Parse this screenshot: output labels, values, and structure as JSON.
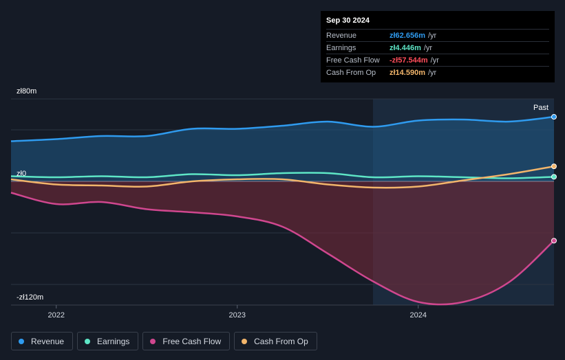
{
  "tooltip": {
    "date": "Sep 30 2024",
    "rows": [
      {
        "label": "Revenue",
        "value": "zł62.656m",
        "unit": "/yr",
        "color": "#2f9bef"
      },
      {
        "label": "Earnings",
        "value": "zł4.446m",
        "unit": "/yr",
        "color": "#5ee6c6"
      },
      {
        "label": "Free Cash Flow",
        "value": "-zł57.544m",
        "unit": "/yr",
        "color": "#ff4d5b"
      },
      {
        "label": "Cash From Op",
        "value": "zł14.590m",
        "unit": "/yr",
        "color": "#f2b56b"
      }
    ]
  },
  "legend": [
    {
      "label": "Revenue",
      "color": "#2f9bef"
    },
    {
      "label": "Earnings",
      "color": "#5ee6c6"
    },
    {
      "label": "Free Cash Flow",
      "color": "#d0478f"
    },
    {
      "label": "Cash From Op",
      "color": "#f2b56b"
    }
  ],
  "chart_data": {
    "type": "line",
    "y_tick_labels": [
      "zł80m",
      "zł0",
      "-zł120m"
    ],
    "x_tick_labels": [
      "2022",
      "2023",
      "2024"
    ],
    "past_label": "Past",
    "ylim": [
      -120,
      80
    ],
    "xlim": [
      2021.75,
      2024.75
    ],
    "past_start": 2023.75,
    "series": [
      {
        "name": "Revenue",
        "color": "#2f9bef",
        "x": [
          2021.75,
          2022.0,
          2022.25,
          2022.5,
          2022.75,
          2023.0,
          2023.25,
          2023.5,
          2023.75,
          2024.0,
          2024.25,
          2024.5,
          2024.75
        ],
        "y": [
          39,
          41,
          44,
          44,
          51,
          51,
          54,
          58,
          53,
          59,
          60,
          58,
          62.656
        ]
      },
      {
        "name": "Earnings",
        "color": "#5ee6c6",
        "x": [
          2021.75,
          2022.0,
          2022.25,
          2022.5,
          2022.75,
          2023.0,
          2023.25,
          2023.5,
          2023.75,
          2024.0,
          2024.25,
          2024.5,
          2024.75
        ],
        "y": [
          5,
          4,
          5,
          4,
          7,
          6,
          8,
          8,
          4,
          5,
          4,
          3,
          4.446
        ]
      },
      {
        "name": "Free Cash Flow",
        "color": "#d0478f",
        "x": [
          2021.75,
          2022.0,
          2022.25,
          2022.5,
          2022.75,
          2023.0,
          2023.25,
          2023.5,
          2023.75,
          2024.0,
          2024.25,
          2024.5,
          2024.75
        ],
        "y": [
          -11,
          -22,
          -20,
          -27,
          -30,
          -34,
          -44,
          -70,
          -97,
          -117,
          -117,
          -98,
          -57.544
        ]
      },
      {
        "name": "Cash From Op",
        "color": "#f2b56b",
        "x": [
          2021.75,
          2022.0,
          2022.25,
          2022.5,
          2022.75,
          2023.0,
          2023.25,
          2023.5,
          2023.75,
          2024.0,
          2024.25,
          2024.5,
          2024.75
        ],
        "y": [
          2,
          -3,
          -4,
          -5,
          0,
          2,
          2,
          -3,
          -6,
          -5,
          1,
          7,
          14.59
        ]
      }
    ]
  }
}
